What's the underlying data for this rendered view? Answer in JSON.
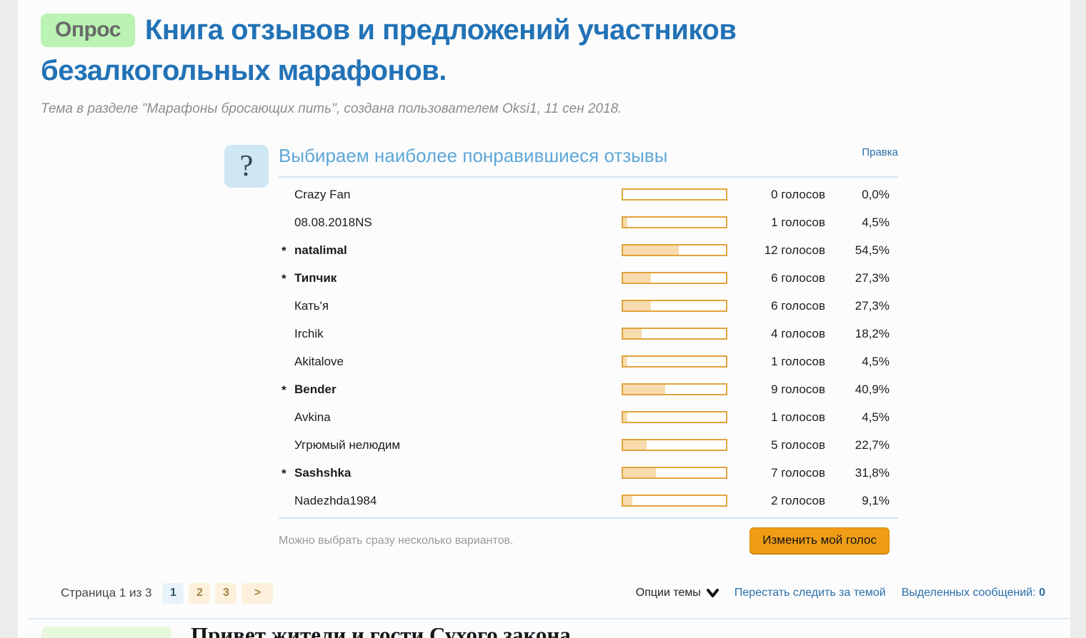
{
  "thread": {
    "prefix_badge": "Опрос",
    "title": "Книга отзывов и предложений участников безалкогольных марафонов.",
    "subtitle": "Тема в разделе \"Марафоны бросающих пить\", создана пользователем Oksi1, 11 сен 2018."
  },
  "poll": {
    "icon": "question-mark",
    "title": "Выбираем наиболее понравившиеся отзывы",
    "edit_link": "Правка",
    "star_marker": "*",
    "note": "Можно выбрать сразу несколько вариантов.",
    "change_vote_button": "Изменить мой голос",
    "options": [
      {
        "name": "Crazy Fan",
        "starred": false,
        "votes": 0,
        "votes_label": "0 голосов",
        "percent_label": "0,0%",
        "percent_value": 0
      },
      {
        "name": "08.08.2018NS",
        "starred": false,
        "votes": 1,
        "votes_label": "1 голосов",
        "percent_label": "4,5%",
        "percent_value": 4.5
      },
      {
        "name": "natalimal",
        "starred": true,
        "votes": 12,
        "votes_label": "12 голосов",
        "percent_label": "54,5%",
        "percent_value": 54.5
      },
      {
        "name": "Типчик",
        "starred": true,
        "votes": 6,
        "votes_label": "6 голосов",
        "percent_label": "27,3%",
        "percent_value": 27.3
      },
      {
        "name": "Кать'я",
        "starred": false,
        "votes": 6,
        "votes_label": "6 голосов",
        "percent_label": "27,3%",
        "percent_value": 27.3
      },
      {
        "name": "Irchik",
        "starred": false,
        "votes": 4,
        "votes_label": "4 голосов",
        "percent_label": "18,2%",
        "percent_value": 18.2
      },
      {
        "name": "Akitalove",
        "starred": false,
        "votes": 1,
        "votes_label": "1 голосов",
        "percent_label": "4,5%",
        "percent_value": 4.5
      },
      {
        "name": "Bender",
        "starred": true,
        "votes": 9,
        "votes_label": "9 голосов",
        "percent_label": "40,9%",
        "percent_value": 40.9
      },
      {
        "name": "Avkina",
        "starred": false,
        "votes": 1,
        "votes_label": "1 голосов",
        "percent_label": "4,5%",
        "percent_value": 4.5
      },
      {
        "name": "Угрюмый нелюдим",
        "starred": false,
        "votes": 5,
        "votes_label": "5 голосов",
        "percent_label": "22,7%",
        "percent_value": 22.7
      },
      {
        "name": "Sashshka",
        "starred": true,
        "votes": 7,
        "votes_label": "7 голосов",
        "percent_label": "31,8%",
        "percent_value": 31.8
      },
      {
        "name": "Nadezhda1984",
        "starred": false,
        "votes": 2,
        "votes_label": "2 голосов",
        "percent_label": "9,1%",
        "percent_value": 9.1
      }
    ]
  },
  "pagination": {
    "label": "Страница 1 из 3",
    "pages": [
      "1",
      "2",
      "3"
    ],
    "current_page": "1",
    "next_symbol": ">"
  },
  "topic_tools": {
    "options_label": "Опции темы",
    "unwatch_link": "Перестать следить за темой",
    "selected_messages_label": "Выделенных сообщений:",
    "selected_messages_count": "0"
  },
  "next_post": {
    "preview_text": "Привет жители и гости Сухого закона"
  },
  "colors": {
    "title_blue": "#2272b6",
    "poll_title_blue": "#5ea7d8",
    "link_blue": "#2a6ea8",
    "badge_green": "#baf3b3",
    "bar_border_orange": "#e2a33c",
    "bar_fill_orange": "#f8dcae",
    "button_orange": "#f09d16",
    "pagination_current_bg": "#e7f3f8",
    "pagination_page_bg": "#fdf1dc",
    "pagination_page_text": "#a3824a"
  }
}
